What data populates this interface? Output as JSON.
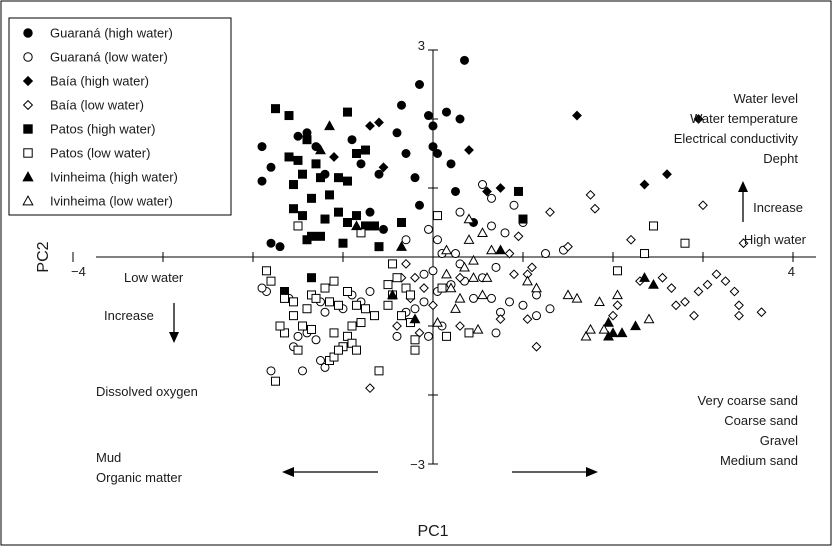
{
  "chart_data": {
    "type": "scatter",
    "xlabel": "PC1",
    "ylabel": "PC2",
    "xlim": [
      -4,
      4
    ],
    "ylim": [
      -3,
      3
    ],
    "x_tick_labels": [
      {
        "value": -4,
        "label": "−4"
      },
      {
        "value": 4,
        "label": "4"
      }
    ],
    "y_tick_labels": [
      {
        "value": 3,
        "label": "3"
      },
      {
        "value": -3,
        "label": "−3"
      }
    ],
    "x_ticks": [
      -4,
      -3,
      -2,
      -1,
      0,
      1,
      2,
      3,
      4
    ],
    "y_ticks": [
      -3,
      -2,
      -1,
      0,
      1,
      2,
      3
    ],
    "grid": false,
    "legend_position": "top-left",
    "legend": [
      {
        "name": "Guaraná (high water)",
        "marker": "circle",
        "filled": true
      },
      {
        "name": "Guaraná (low water)",
        "marker": "circle",
        "filled": false
      },
      {
        "name": "Baía (high water)",
        "marker": "diamond",
        "filled": true
      },
      {
        "name": "Baía (low water)",
        "marker": "diamond",
        "filled": false
      },
      {
        "name": "Patos (high water)",
        "marker": "square",
        "filled": true
      },
      {
        "name": "Patos (low water)",
        "marker": "square",
        "filled": false
      },
      {
        "name": "Ivinheima (high water)",
        "marker": "triangle",
        "filled": true
      },
      {
        "name": "Ivinheima (low water)",
        "marker": "triangle",
        "filled": false
      }
    ],
    "annotations": {
      "upper_right": [
        "Water level",
        "Water temperature",
        "Electrical conductivity",
        "Depht"
      ],
      "increase_up": "Increase",
      "high_water": "High water",
      "low_water": "Low water",
      "increase_down": "Increase",
      "dissolved_oxygen": "Dissolved oxygen",
      "lower_left": [
        "Mud",
        "Organic matter"
      ],
      "lower_right": [
        "Very coarse sand",
        "Coarse sand",
        "Gravel",
        "Medium sand"
      ]
    },
    "series": [
      {
        "marker": "circle",
        "filled": true,
        "points": [
          [
            -1.9,
            1.6
          ],
          [
            -1.9,
            1.1
          ],
          [
            -1.8,
            1.3
          ],
          [
            -1.8,
            0.2
          ],
          [
            -1.7,
            0.15
          ],
          [
            -1.5,
            1.75
          ],
          [
            -1.4,
            1.8
          ],
          [
            -1.3,
            1.6
          ],
          [
            -1.2,
            1.2
          ],
          [
            -0.9,
            1.7
          ],
          [
            -0.8,
            1.35
          ],
          [
            -0.7,
            0.65
          ],
          [
            -0.6,
            1.2
          ],
          [
            -0.55,
            0.4
          ],
          [
            -0.4,
            1.8
          ],
          [
            -0.35,
            2.2
          ],
          [
            -0.3,
            1.5
          ],
          [
            -0.2,
            1.15
          ],
          [
            -0.15,
            2.5
          ],
          [
            -0.05,
            2.05
          ],
          [
            0.0,
            1.6
          ],
          [
            0.0,
            1.9
          ],
          [
            0.05,
            1.5
          ],
          [
            0.15,
            2.1
          ],
          [
            0.2,
            1.35
          ],
          [
            -0.15,
            0.75
          ],
          [
            0.3,
            2.0
          ],
          [
            0.25,
            0.95
          ],
          [
            0.35,
            2.85
          ],
          [
            0.45,
            0.5
          ]
        ]
      },
      {
        "marker": "circle",
        "filled": false,
        "points": [
          [
            0.55,
            1.05
          ],
          [
            0.65,
            0.45
          ],
          [
            0.65,
            0.85
          ],
          [
            0.8,
            0.35
          ],
          [
            0.9,
            0.75
          ],
          [
            1.0,
            0.5
          ],
          [
            1.25,
            0.05
          ],
          [
            1.45,
            0.1
          ],
          [
            0.7,
            -0.15
          ],
          [
            0.55,
            -0.3
          ],
          [
            0.3,
            -0.1
          ],
          [
            0.2,
            -0.4
          ],
          [
            0.1,
            0.05
          ],
          [
            0.0,
            -0.2
          ],
          [
            -0.1,
            -0.25
          ],
          [
            0.05,
            -0.5
          ],
          [
            0.45,
            -0.6
          ],
          [
            0.65,
            -0.6
          ],
          [
            0.75,
            -0.8
          ],
          [
            0.85,
            -0.65
          ],
          [
            1.0,
            -0.7
          ],
          [
            1.15,
            -0.55
          ],
          [
            1.15,
            -0.85
          ],
          [
            1.3,
            -0.75
          ],
          [
            0.7,
            -1.1
          ],
          [
            0.1,
            -1.0
          ],
          [
            -0.05,
            -1.15
          ],
          [
            -0.3,
            -0.8
          ],
          [
            -0.2,
            -0.75
          ],
          [
            -0.4,
            -1.15
          ],
          [
            -0.7,
            -0.5
          ],
          [
            -0.8,
            -0.65
          ],
          [
            -0.9,
            -0.55
          ],
          [
            -1.0,
            -0.75
          ],
          [
            -1.2,
            -0.8
          ],
          [
            -1.3,
            -1.2
          ],
          [
            -1.4,
            -1.1
          ],
          [
            -1.5,
            -1.15
          ],
          [
            -1.55,
            -1.3
          ],
          [
            -1.6,
            -0.6
          ],
          [
            -1.25,
            -0.65
          ],
          [
            -1.85,
            -0.5
          ],
          [
            -1.8,
            -1.65
          ],
          [
            -1.25,
            -1.5
          ],
          [
            -1.45,
            -1.65
          ],
          [
            -1.2,
            -1.6
          ],
          [
            0.35,
            -0.35
          ],
          [
            -0.1,
            -0.65
          ],
          [
            -0.3,
            0.25
          ],
          [
            -0.05,
            0.4
          ],
          [
            0.05,
            0.25
          ],
          [
            0.25,
            0.05
          ],
          [
            0.3,
            0.65
          ],
          [
            -1.9,
            -0.45
          ]
        ]
      },
      {
        "marker": "diamond",
        "filled": true,
        "points": [
          [
            -0.7,
            1.9
          ],
          [
            -0.6,
            1.95
          ],
          [
            -0.55,
            1.3
          ],
          [
            -1.1,
            1.45
          ],
          [
            0.4,
            1.55
          ],
          [
            0.6,
            0.95
          ],
          [
            0.75,
            1.0
          ],
          [
            1.6,
            2.05
          ],
          [
            2.35,
            1.05
          ],
          [
            2.6,
            1.2
          ],
          [
            2.95,
            2.0
          ]
        ]
      },
      {
        "marker": "diamond",
        "filled": false,
        "points": [
          [
            0.85,
            0.05
          ],
          [
            0.9,
            -0.25
          ],
          [
            1.1,
            -0.15
          ],
          [
            0.95,
            0.3
          ],
          [
            1.3,
            0.65
          ],
          [
            1.5,
            0.15
          ],
          [
            1.75,
            0.9
          ],
          [
            1.8,
            0.7
          ],
          [
            2.2,
            0.25
          ],
          [
            3.0,
            0.75
          ],
          [
            3.45,
            0.2
          ],
          [
            2.3,
            -0.35
          ],
          [
            2.55,
            -0.3
          ],
          [
            2.65,
            -0.45
          ],
          [
            2.8,
            -0.65
          ],
          [
            2.95,
            -0.5
          ],
          [
            3.05,
            -0.4
          ],
          [
            3.15,
            -0.25
          ],
          [
            3.25,
            -0.35
          ],
          [
            3.35,
            -0.5
          ],
          [
            3.4,
            -0.7
          ],
          [
            2.7,
            -0.7
          ],
          [
            2.9,
            -0.85
          ],
          [
            3.4,
            -0.85
          ],
          [
            3.65,
            -0.8
          ],
          [
            2.05,
            -0.7
          ],
          [
            2.0,
            -0.85
          ],
          [
            1.05,
            -0.9
          ],
          [
            1.15,
            -1.3
          ],
          [
            0.3,
            -1.0
          ],
          [
            0.0,
            -0.7
          ],
          [
            -0.1,
            -0.45
          ],
          [
            -0.2,
            -0.3
          ],
          [
            -0.25,
            -0.6
          ],
          [
            -0.15,
            -1.1
          ],
          [
            -0.4,
            -1.0
          ],
          [
            -0.35,
            -0.3
          ],
          [
            -0.7,
            -1.9
          ],
          [
            -0.3,
            -0.1
          ],
          [
            0.75,
            -0.9
          ],
          [
            1.05,
            -0.25
          ],
          [
            0.3,
            -0.3
          ]
        ]
      },
      {
        "marker": "square",
        "filled": true,
        "points": [
          [
            -1.6,
            1.45
          ],
          [
            -1.5,
            1.4
          ],
          [
            -1.45,
            1.2
          ],
          [
            -1.4,
            1.7
          ],
          [
            -1.3,
            1.35
          ],
          [
            -1.25,
            1.15
          ],
          [
            -1.2,
            0.55
          ],
          [
            -1.15,
            0.9
          ],
          [
            -1.05,
            0.65
          ],
          [
            -1.0,
            0.2
          ],
          [
            -0.95,
            0.5
          ],
          [
            -0.85,
            0.6
          ],
          [
            -0.75,
            0.45
          ],
          [
            -0.6,
            0.15
          ],
          [
            -0.35,
            0.5
          ],
          [
            -1.35,
            0.3
          ],
          [
            -1.25,
            0.3
          ],
          [
            -1.55,
            1.05
          ],
          [
            -0.95,
            1.1
          ],
          [
            -0.85,
            1.5
          ],
          [
            -1.45,
            0.6
          ],
          [
            -1.75,
            2.15
          ],
          [
            -1.6,
            2.05
          ],
          [
            -0.95,
            2.1
          ],
          [
            -0.75,
            1.55
          ],
          [
            -1.35,
            0.85
          ],
          [
            -1.05,
            1.15
          ],
          [
            -1.4,
            0.25
          ],
          [
            1.0,
            0.55
          ],
          [
            0.95,
            0.95
          ],
          [
            -1.35,
            -0.3
          ],
          [
            -1.65,
            -0.5
          ],
          [
            -0.65,
            0.45
          ],
          [
            -1.55,
            0.7
          ]
        ]
      },
      {
        "marker": "square",
        "filled": false,
        "points": [
          [
            -1.85,
            -0.2
          ],
          [
            -1.8,
            -0.35
          ],
          [
            -1.65,
            -0.6
          ],
          [
            -1.55,
            -0.65
          ],
          [
            -1.4,
            -0.75
          ],
          [
            -1.35,
            -0.55
          ],
          [
            -1.3,
            -0.6
          ],
          [
            -1.2,
            -0.45
          ],
          [
            -1.15,
            -0.65
          ],
          [
            -1.1,
            -0.35
          ],
          [
            -1.05,
            -0.7
          ],
          [
            -0.95,
            -0.5
          ],
          [
            -0.85,
            -0.7
          ],
          [
            -0.8,
            -0.95
          ],
          [
            -0.75,
            -0.75
          ],
          [
            -0.65,
            -0.85
          ],
          [
            -0.5,
            -0.7
          ],
          [
            -0.45,
            -0.55
          ],
          [
            -0.5,
            -0.4
          ],
          [
            -0.4,
            -0.3
          ],
          [
            -0.3,
            -0.45
          ],
          [
            -0.25,
            -0.55
          ],
          [
            -0.35,
            -0.85
          ],
          [
            -0.9,
            -1.0
          ],
          [
            -0.95,
            -1.15
          ],
          [
            -1.1,
            -1.1
          ],
          [
            -1.0,
            -1.3
          ],
          [
            -1.15,
            -1.5
          ],
          [
            -1.1,
            -1.45
          ],
          [
            -0.9,
            -1.25
          ],
          [
            -1.05,
            -1.35
          ],
          [
            -0.85,
            -1.35
          ],
          [
            -1.45,
            -1.0
          ],
          [
            -1.55,
            -0.85
          ],
          [
            -1.65,
            -1.1
          ],
          [
            -1.7,
            -1.0
          ],
          [
            -1.35,
            -1.05
          ],
          [
            -0.6,
            -1.65
          ],
          [
            -0.25,
            -0.95
          ],
          [
            -0.2,
            -1.2
          ],
          [
            -0.2,
            -1.35
          ],
          [
            0.15,
            -1.15
          ],
          [
            0.4,
            -1.1
          ],
          [
            0.1,
            -0.45
          ],
          [
            -0.45,
            -0.1
          ],
          [
            -0.8,
            0.35
          ],
          [
            -1.5,
            0.45
          ],
          [
            2.05,
            -0.2
          ],
          [
            2.35,
            0.05
          ],
          [
            2.45,
            0.45
          ],
          [
            2.8,
            0.2
          ],
          [
            -1.75,
            -1.8
          ],
          [
            -1.5,
            -1.35
          ],
          [
            0.05,
            0.6
          ]
        ]
      },
      {
        "marker": "triangle",
        "filled": true,
        "points": [
          [
            -1.25,
            1.55
          ],
          [
            -1.15,
            1.9
          ],
          [
            -0.85,
            0.45
          ],
          [
            0.75,
            0.1
          ],
          [
            -0.2,
            -0.9
          ],
          [
            -0.35,
            0.15
          ],
          [
            -0.45,
            -0.55
          ],
          [
            2.25,
            -1.0
          ],
          [
            2.35,
            -0.3
          ],
          [
            2.45,
            -0.4
          ],
          [
            2.1,
            -1.1
          ],
          [
            2.0,
            -1.1
          ],
          [
            1.95,
            -1.15
          ],
          [
            1.95,
            -0.95
          ]
        ]
      },
      {
        "marker": "triangle",
        "filled": false,
        "points": [
          [
            0.4,
            0.25
          ],
          [
            0.55,
            0.35
          ],
          [
            0.45,
            -0.05
          ],
          [
            0.35,
            -0.15
          ],
          [
            0.45,
            -0.3
          ],
          [
            0.2,
            -0.45
          ],
          [
            0.3,
            -0.6
          ],
          [
            0.55,
            -0.55
          ],
          [
            0.6,
            -0.3
          ],
          [
            0.25,
            -0.75
          ],
          [
            0.05,
            -0.95
          ],
          [
            0.5,
            -1.05
          ],
          [
            0.4,
            0.55
          ],
          [
            0.65,
            0.1
          ],
          [
            0.15,
            -0.25
          ],
          [
            0.15,
            0.1
          ],
          [
            1.15,
            -0.45
          ],
          [
            1.05,
            -0.35
          ],
          [
            1.5,
            -0.55
          ],
          [
            1.7,
            -1.15
          ],
          [
            1.75,
            -1.05
          ],
          [
            1.9,
            -1.05
          ],
          [
            2.05,
            -0.55
          ],
          [
            1.85,
            -0.65
          ],
          [
            1.6,
            -0.6
          ],
          [
            2.4,
            -0.9
          ]
        ]
      }
    ]
  }
}
